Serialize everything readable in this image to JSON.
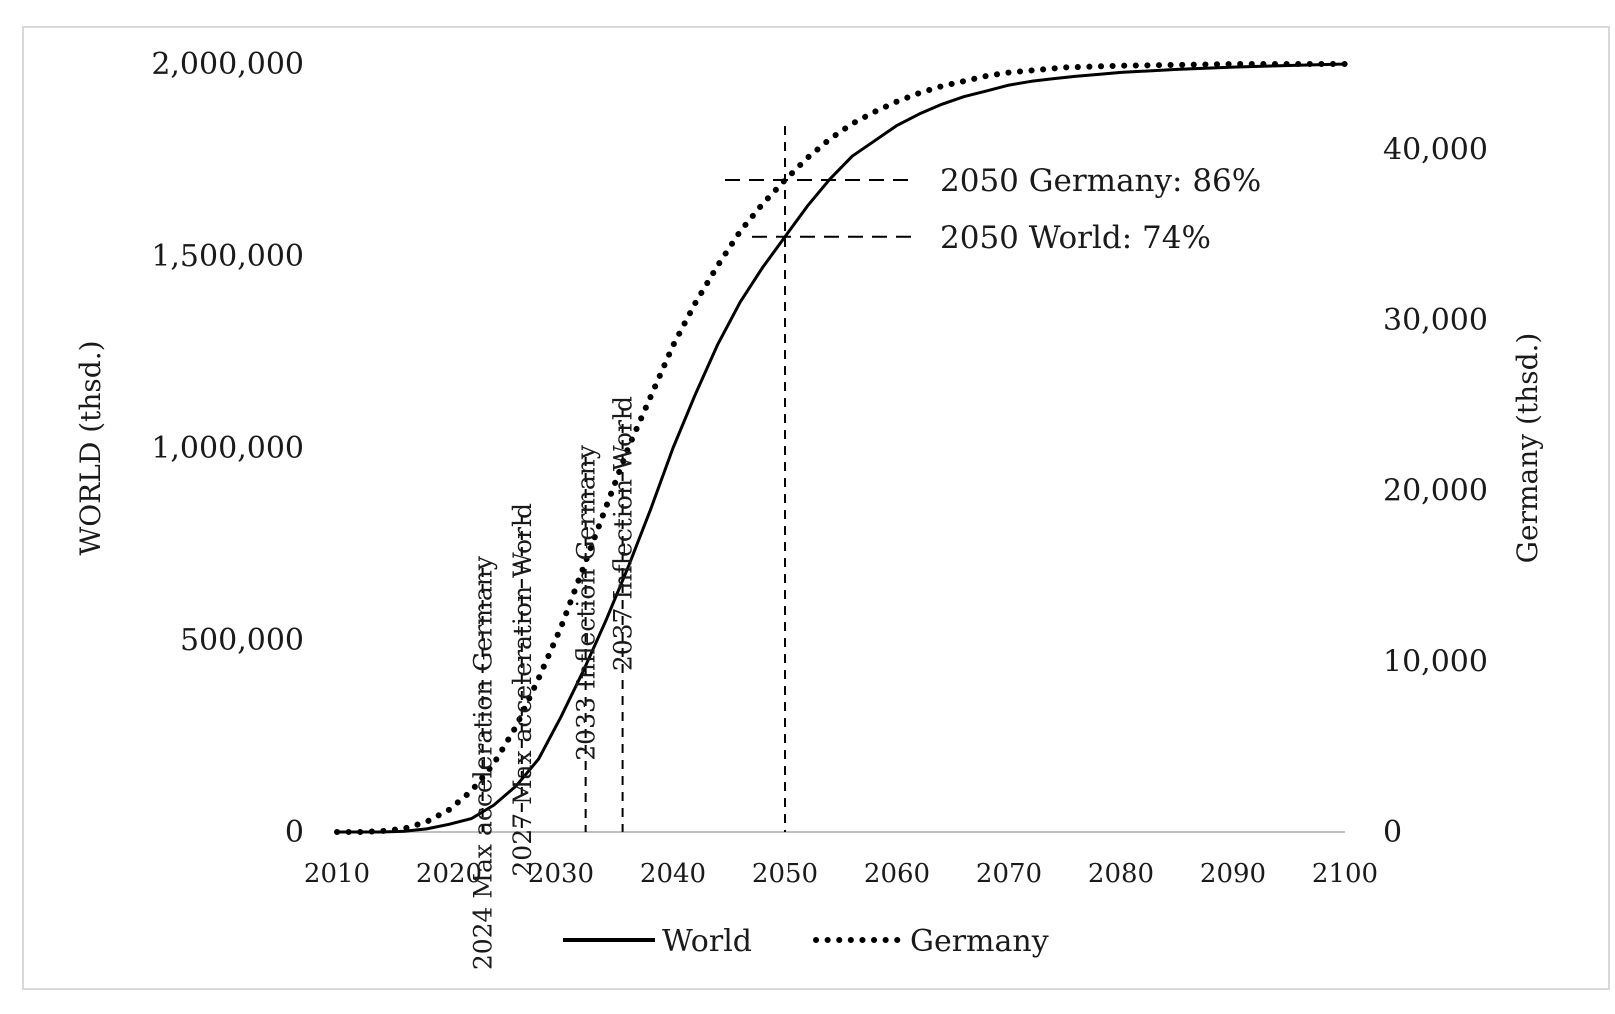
{
  "chart_data": {
    "type": "line",
    "xlabel": "",
    "ylabel_left": "WORLD (thsd.)",
    "ylabel_right": "Germany (thsd.)",
    "xlim": [
      2010,
      2100
    ],
    "ylim_left": [
      0,
      2000000
    ],
    "ylim_right": [
      0,
      45000
    ],
    "x_ticks": [
      2010,
      2020,
      2030,
      2040,
      2050,
      2060,
      2070,
      2080,
      2090,
      2100
    ],
    "x_tick_labels": [
      "2010",
      "2020",
      "2030",
      "2040",
      "2050",
      "2060",
      "2070",
      "2080",
      "2090",
      "2100"
    ],
    "y_left_ticks": [
      0,
      500000,
      1000000,
      1500000,
      2000000
    ],
    "y_left_tick_labels": [
      "0",
      "500,000",
      "1,000,000",
      "1,500,000",
      "2,000,000"
    ],
    "y_right_ticks": [
      0,
      10000,
      20000,
      30000,
      40000
    ],
    "y_right_tick_labels": [
      "0",
      "10,000",
      "20,000",
      "30,000",
      "40,000"
    ],
    "grid": false,
    "legend_position": "bottom",
    "series": [
      {
        "name": "World",
        "axis": "left",
        "style": "solid",
        "color": "#000000",
        "x": [
          2010,
          2012,
          2014,
          2016,
          2018,
          2020,
          2022,
          2024,
          2026,
          2028,
          2030,
          2032,
          2034,
          2036,
          2038,
          2040,
          2042,
          2044,
          2046,
          2048,
          2050,
          2052,
          2054,
          2056,
          2058,
          2060,
          2062,
          2064,
          2066,
          2068,
          2070,
          2072,
          2074,
          2076,
          2078,
          2080,
          2085,
          2090,
          2095,
          2100
        ],
        "values": [
          0,
          0,
          0,
          2000,
          8000,
          20000,
          35000,
          70000,
          120000,
          190000,
          300000,
          420000,
          550000,
          690000,
          840000,
          1000000,
          1140000,
          1270000,
          1380000,
          1470000,
          1550000,
          1630000,
          1700000,
          1760000,
          1800000,
          1840000,
          1870000,
          1895000,
          1915000,
          1930000,
          1945000,
          1955000,
          1962000,
          1968000,
          1973000,
          1978000,
          1986000,
          1992000,
          1996000,
          2000000
        ]
      },
      {
        "name": "Germany",
        "axis": "right",
        "style": "dotted",
        "color": "#000000",
        "x": [
          2010,
          2012,
          2014,
          2016,
          2018,
          2020,
          2022,
          2024,
          2026,
          2028,
          2030,
          2032,
          2034,
          2036,
          2038,
          2040,
          2042,
          2044,
          2046,
          2048,
          2050,
          2052,
          2054,
          2056,
          2058,
          2060,
          2062,
          2064,
          2066,
          2068,
          2070,
          2075,
          2080,
          2085,
          2090,
          2095,
          2100
        ],
        "values": [
          0,
          0,
          50,
          200,
          600,
          1300,
          2400,
          4000,
          6200,
          9000,
          12000,
          15500,
          19000,
          22500,
          25500,
          28500,
          31000,
          33200,
          35200,
          36800,
          38200,
          39500,
          40600,
          41500,
          42200,
          42800,
          43300,
          43700,
          44000,
          44300,
          44500,
          44800,
          44900,
          44950,
          45000,
          45000,
          45000
        ]
      }
    ],
    "vertical_markers": [
      {
        "x": 2023,
        "label": "2024 Max acceleration Germany"
      },
      {
        "x": 2026.5,
        "label": "2027 Max acceleration World"
      },
      {
        "x": 2032.2,
        "label": "2033 Inflection Germany"
      },
      {
        "x": 2035.5,
        "label": "2037 Inflection World"
      },
      {
        "x": 2050,
        "label": ""
      }
    ],
    "callouts": [
      {
        "label": "2050 Germany: 86%",
        "series": "Germany",
        "x": 2050
      },
      {
        "label": "2050 World: 74%",
        "series": "World",
        "x": 2050
      }
    ]
  }
}
